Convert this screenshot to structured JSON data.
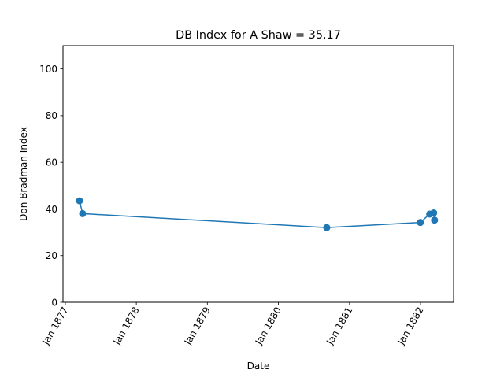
{
  "chart_data": {
    "type": "line",
    "title": "DB Index for A Shaw = 35.17",
    "xlabel": "Date",
    "ylabel": "Don Bradman Index",
    "xlim": [
      "1876-12-20",
      "1882-06-20"
    ],
    "ylim": [
      0,
      110
    ],
    "xticks": [
      {
        "date": "1877-01-01",
        "label": "Jan 1877"
      },
      {
        "date": "1878-01-01",
        "label": "Jan 1878"
      },
      {
        "date": "1879-01-01",
        "label": "Jan 1879"
      },
      {
        "date": "1880-01-01",
        "label": "Jan 1880"
      },
      {
        "date": "1881-01-01",
        "label": "Jan 1881"
      },
      {
        "date": "1882-01-01",
        "label": "Jan 1882"
      }
    ],
    "yticks": [
      0,
      20,
      40,
      60,
      80,
      100
    ],
    "grid": false,
    "color": "#1f77b4",
    "series": [
      {
        "x": [
          "1877-03-15",
          "1877-03-31",
          "1880-09-06",
          "1881-12-31",
          "1882-02-17",
          "1882-03-10",
          "1882-03-14"
        ],
        "y": [
          43.5,
          38.0,
          32.0,
          34.2,
          37.8,
          38.3,
          35.2
        ]
      }
    ]
  }
}
